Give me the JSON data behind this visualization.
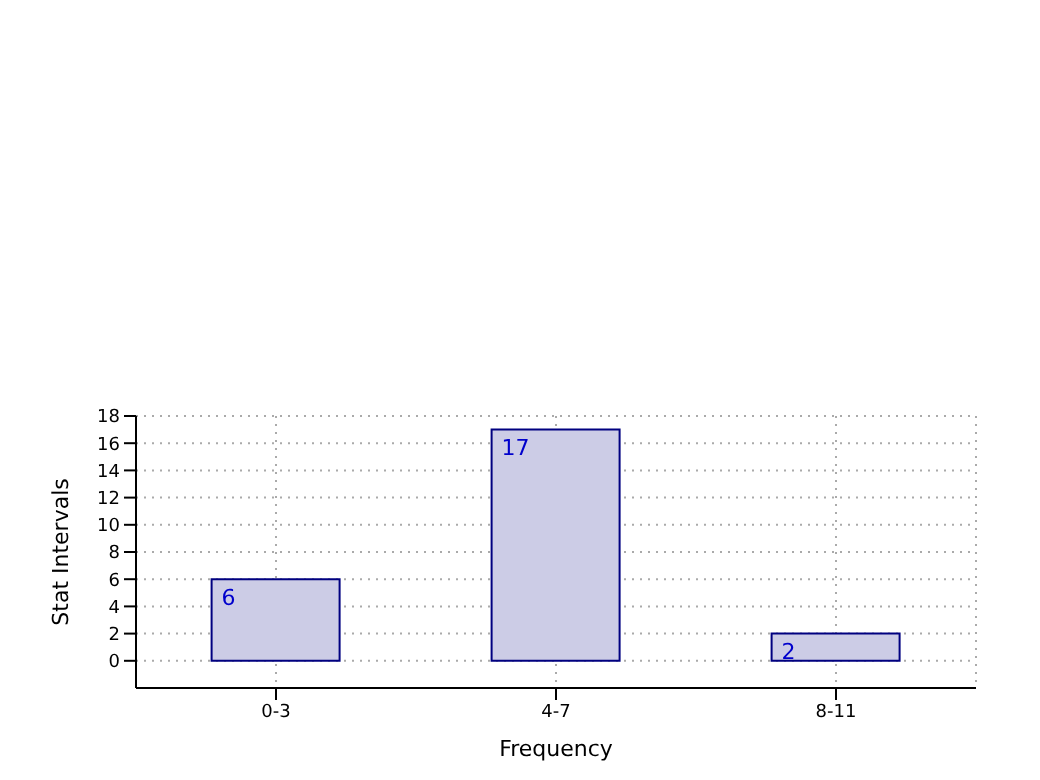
{
  "chart_data": {
    "type": "bar",
    "xlabel": "Frequency",
    "ylabel": "Stat Intervals",
    "categories": [
      "0-3",
      "4-7",
      "8-11"
    ],
    "values": [
      6,
      17,
      2
    ],
    "color": "#cccce6",
    "data_labels": true,
    "ylim": [
      -2,
      18
    ],
    "yticks": [
      0,
      2,
      4,
      6,
      8,
      10,
      12,
      14,
      16,
      18
    ],
    "grid": true
  }
}
